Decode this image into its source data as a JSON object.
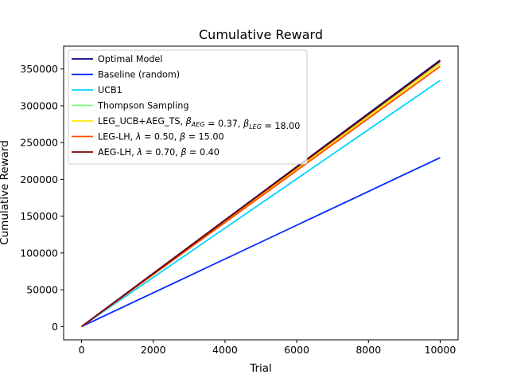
{
  "chart_data": {
    "type": "line",
    "title": "Cumulative Reward",
    "xlabel": "Trial",
    "ylabel": "Cumulative Reward",
    "xlim": [
      -500,
      10500
    ],
    "ylim": [
      -18000,
      381000
    ],
    "x_ticks": [
      0,
      2000,
      4000,
      6000,
      8000,
      10000
    ],
    "y_ticks": [
      0,
      50000,
      100000,
      150000,
      200000,
      250000,
      300000,
      350000
    ],
    "x_tick_labels": [
      "0",
      "2000",
      "4000",
      "6000",
      "8000",
      "10000"
    ],
    "y_tick_labels": [
      "0",
      "50000",
      "100000",
      "150000",
      "200000",
      "250000",
      "300000",
      "350000"
    ],
    "grid": false,
    "legend_position": "top-left",
    "series": [
      {
        "name": "Optimal Model",
        "label_parts": [
          {
            "t": "Optimal Model"
          }
        ],
        "color": "#00007f",
        "x": [
          0,
          10000
        ],
        "y": [
          0,
          362000
        ]
      },
      {
        "name": "Baseline (random)",
        "label_parts": [
          {
            "t": "Baseline (random)"
          }
        ],
        "color": "#0029ff",
        "x": [
          0,
          10000
        ],
        "y": [
          0,
          229500
        ]
      },
      {
        "name": "UCB1",
        "label_parts": [
          {
            "t": "UCB1"
          }
        ],
        "color": "#00d4ff",
        "x": [
          0,
          10000
        ],
        "y": [
          0,
          334500
        ]
      },
      {
        "name": "Thompson Sampling",
        "label_parts": [
          {
            "t": "Thompson Sampling"
          }
        ],
        "color": "#7dff7a",
        "x": [
          0,
          10000
        ],
        "y": [
          0,
          357500
        ]
      },
      {
        "name": "LEG_UCB+AEG_TS, βAEG = 0.37, βLEG = 18.00",
        "label_parts": [
          {
            "t": "LEG_UCB+AEG_TS, "
          },
          {
            "t": "β",
            "g": 1
          },
          {
            "t": "AEG",
            "sub": 1
          },
          {
            "t": " = 0.37, "
          },
          {
            "t": "β",
            "g": 1
          },
          {
            "t": "LEG",
            "sub": 1
          },
          {
            "t": " = 18.00"
          }
        ],
        "color": "#ffe600",
        "x": [
          0,
          10000
        ],
        "y": [
          0,
          356500
        ]
      },
      {
        "name": "LEG-LH, λ = 0.50, β = 15.00",
        "label_parts": [
          {
            "t": "LEG-LH, "
          },
          {
            "t": "λ",
            "g": 1
          },
          {
            "t": " = 0.50, "
          },
          {
            "t": "β",
            "g": 1
          },
          {
            "t": " = 15.00"
          }
        ],
        "color": "#ff4a00",
        "x": [
          0,
          10000
        ],
        "y": [
          0,
          353500
        ]
      },
      {
        "name": "AEG-LH, λ = 0.70, β = 0.40",
        "label_parts": [
          {
            "t": "AEG-LH, "
          },
          {
            "t": "λ",
            "g": 1
          },
          {
            "t": " = 0.70, "
          },
          {
            "t": "β",
            "g": 1
          },
          {
            "t": " = 0.40"
          }
        ],
        "color": "#7f0000",
        "x": [
          0,
          10000
        ],
        "y": [
          0,
          360500
        ]
      }
    ]
  }
}
